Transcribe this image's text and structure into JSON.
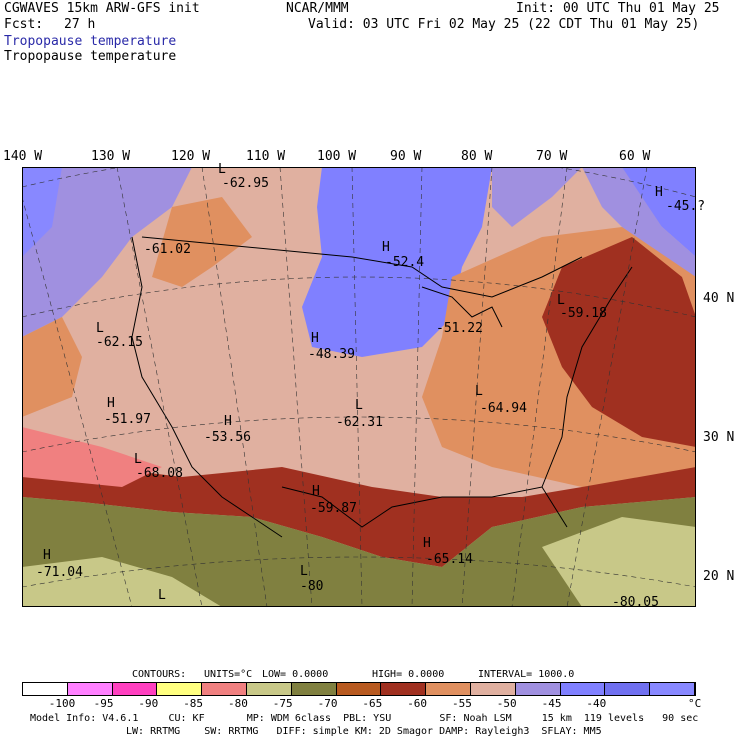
{
  "header": {
    "line1_left": "CGWAVES 15km ARW-GFS init",
    "line1_mid": "NCAR/MMM",
    "line1_right": "Init: 00 UTC Thu 01 May 25",
    "fcst_label": "Fcst:",
    "fcst_value": "27 h",
    "valid": "Valid: 03 UTC Fri 02 May 25 (22 CDT Thu 01 May 25)",
    "field1": "Tropopause temperature",
    "field2": "Tropopause temperature"
  },
  "longitudes": [
    "140 W",
    "130 W",
    "120 W",
    "110 W",
    "100 W",
    "90 W",
    "80 W",
    "70 W",
    "60 W"
  ],
  "latitudes": [
    "40 N",
    "30 N",
    "20 N"
  ],
  "annotations": [
    {
      "mark": "L",
      "value": "-62.95"
    },
    {
      "mark": "H",
      "value": "-45.?"
    },
    {
      "mark": "",
      "value": "-61.02"
    },
    {
      "mark": "H",
      "value": "-52.4"
    },
    {
      "mark": "L",
      "value": "-62.15"
    },
    {
      "mark": "L",
      "value": "-59.18"
    },
    {
      "mark": "H",
      "value": "-48.39"
    },
    {
      "mark": "",
      "value": "-51.22"
    },
    {
      "mark": "H",
      "value": "-51.97"
    },
    {
      "mark": "H",
      "value": "-53.56"
    },
    {
      "mark": "L",
      "value": "-62.31"
    },
    {
      "mark": "L",
      "value": "-64.94"
    },
    {
      "mark": "L",
      "value": "-68.08"
    },
    {
      "mark": "H",
      "value": "-59.87"
    },
    {
      "mark": "H",
      "value": "-65.14"
    },
    {
      "mark": "H",
      "value": "-71.04"
    },
    {
      "mark": "L",
      "value": "-80"
    },
    {
      "mark": "L",
      "value": ""
    },
    {
      "mark": "",
      "value": "-80.05"
    }
  ],
  "contours": {
    "label": "CONTOURS:",
    "units": "UNITS=°C",
    "low": "LOW= 0.0000",
    "high": "HIGH= 0.0000",
    "interval": "INTERVAL= 1000.0"
  },
  "colorbar": {
    "colors": [
      "#ffffff",
      "#ff80ff",
      "#ff40c0",
      "#ffff80",
      "#f08080",
      "#c8c888",
      "#808040",
      "#b85a20",
      "#a03020",
      "#e09060",
      "#e0b0a0",
      "#a090e0",
      "#8080ff",
      "#7070f0",
      "#8888ff"
    ],
    "ticks": [
      "-100",
      "-95",
      "-90",
      "-85",
      "-80",
      "-75",
      "-70",
      "-65",
      "-60",
      "-55",
      "-50",
      "-45",
      "-40"
    ],
    "unit": "°C"
  },
  "footer": {
    "line1": "Model Info: V4.6.1     CU: KF       MP: WDM 6class  PBL: YSU        SF: Noah LSM     15 km  119 levels   90 sec",
    "line2": "LW: RRTMG    SW: RRTMG   DIFF: simple KM: 2D Smagor DAMP: Rayleigh3  SFLAY: MM5"
  }
}
